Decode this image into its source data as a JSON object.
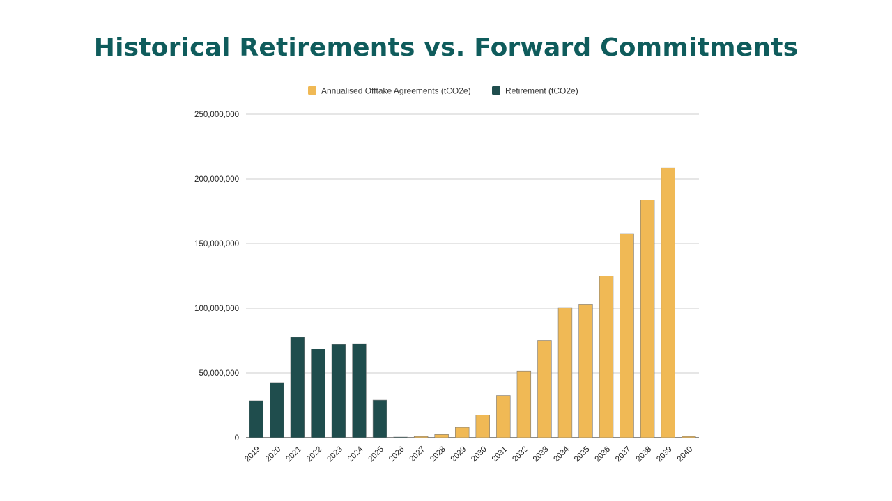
{
  "title": "Historical Retirements vs. Forward Commitments",
  "chart_data": {
    "type": "bar",
    "stacked": true,
    "categories": [
      "2019",
      "2020",
      "2021",
      "2022",
      "2023",
      "2024",
      "2025",
      "2026",
      "2027",
      "2028",
      "2029",
      "2030",
      "2031",
      "2032",
      "2033",
      "2034",
      "2035",
      "2036",
      "2037",
      "2038",
      "2039",
      "2040"
    ],
    "series": [
      {
        "name": "Annualised Offtake Agreements (tCO2e)",
        "color": "#f0b955",
        "values": [
          0,
          0,
          0,
          0,
          0,
          0,
          0,
          0,
          1000000,
          2500000,
          8000000,
          17500000,
          32500000,
          51500000,
          75000000,
          100500000,
          103000000,
          125000000,
          157500000,
          183500000,
          208500000,
          1000000
        ]
      },
      {
        "name": "Retirement (tCO2e)",
        "color": "#1f4d4d",
        "values": [
          28500000,
          42500000,
          77500000,
          68500000,
          72000000,
          72500000,
          29000000,
          500000,
          0,
          0,
          0,
          0,
          0,
          0,
          0,
          0,
          0,
          0,
          0,
          0,
          0,
          0
        ]
      }
    ],
    "yticks": [
      "250,000,000",
      "200,000,000",
      "150,000,000",
      "100,000,000",
      "50,000,000",
      "0"
    ],
    "ylim": [
      0,
      250000000
    ],
    "grid": true,
    "legend_position": "top"
  }
}
